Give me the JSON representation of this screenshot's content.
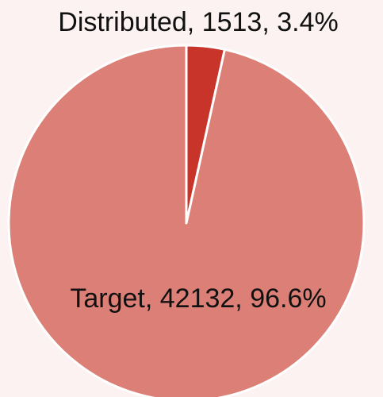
{
  "chart_data": {
    "type": "pie",
    "categories": [
      "Distributed",
      "Target"
    ],
    "values": [
      1513,
      42132
    ],
    "value_labels": [
      "Distributed, 1513, 3.4%",
      "Target, 42132, 96.6%"
    ],
    "colors": [
      "#c9342a",
      "#dc7f76"
    ]
  }
}
